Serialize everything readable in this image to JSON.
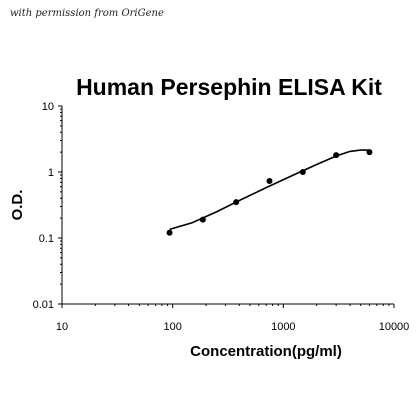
{
  "credit": "with permission from OriGene",
  "chart_data": {
    "type": "scatter",
    "title": "Human Persephin ELISA Kit",
    "xlabel": "Concentration(pg/ml)",
    "ylabel": "O.D.",
    "xscale": "log",
    "yscale": "log",
    "xlim": [
      10,
      10000
    ],
    "ylim": [
      0.01,
      10
    ],
    "x_ticks": [
      "10",
      "100",
      "1000",
      "10000"
    ],
    "y_ticks": [
      "0.01",
      "0.1",
      "1",
      "10"
    ],
    "grid": false,
    "legend": "none",
    "series": [
      {
        "x": [
          93.75,
          187.5,
          375,
          750,
          1500,
          3000,
          6000
        ],
        "y": [
          0.12,
          0.19,
          0.35,
          0.73,
          1.0,
          1.8,
          2.0
        ]
      }
    ],
    "fit_curve": {
      "x": [
        93.75,
        150,
        250,
        400,
        700,
        1200,
        2000,
        3000,
        4000,
        5000,
        6000
      ],
      "y": [
        0.135,
        0.17,
        0.25,
        0.37,
        0.58,
        0.88,
        1.3,
        1.75,
        2.05,
        2.15,
        2.15
      ]
    }
  }
}
